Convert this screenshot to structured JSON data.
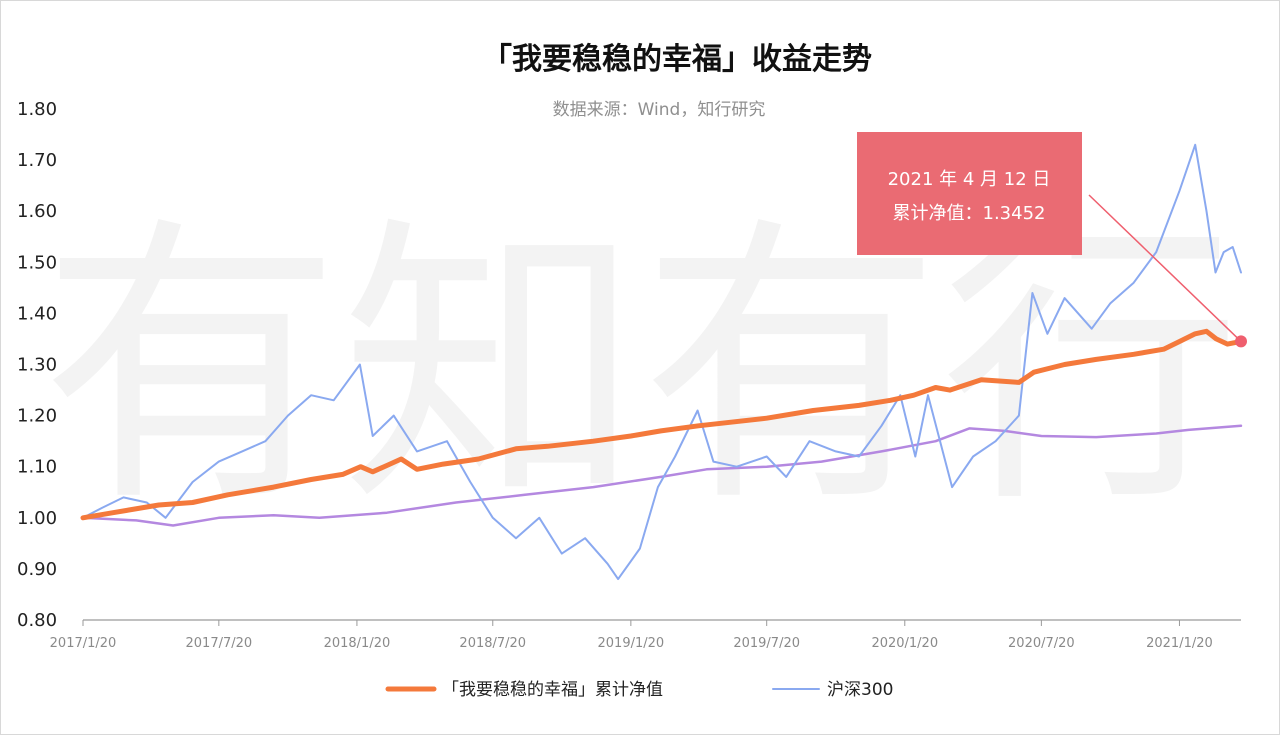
{
  "chart_data": {
    "type": "line",
    "title": "「我要稳稳的幸福」收益走势",
    "subtitle": "数据来源：Wind，知行研究",
    "watermark": "有知有行",
    "ylim": [
      0.8,
      1.8
    ],
    "yticks": [
      "0.80",
      "0.90",
      "1.00",
      "1.10",
      "1.20",
      "1.30",
      "1.40",
      "1.50",
      "1.60",
      "1.70",
      "1.80"
    ],
    "xlim": [
      "2017-01-20",
      "2021-04-12"
    ],
    "xticks": [
      {
        "date": "2017-01-20",
        "label": "2017/1/20"
      },
      {
        "date": "2017-07-20",
        "label": "2017/7/20"
      },
      {
        "date": "2018-01-20",
        "label": "2018/1/20"
      },
      {
        "date": "2018-07-20",
        "label": "2018/7/20"
      },
      {
        "date": "2019-01-20",
        "label": "2019/1/20"
      },
      {
        "date": "2019-07-20",
        "label": "2019/7/20"
      },
      {
        "date": "2020-01-20",
        "label": "2020/1/20"
      },
      {
        "date": "2020-07-20",
        "label": "2020/7/20"
      },
      {
        "date": "2021-01-20",
        "label": "2021/1/20"
      }
    ],
    "legend_position": "bottom",
    "grid": false,
    "series": [
      {
        "name": "「我要稳稳的幸福」累计净值",
        "color": "#f4793b",
        "points": [
          [
            "2017-01-20",
            1.0
          ],
          [
            "2017-03-01",
            1.01
          ],
          [
            "2017-05-01",
            1.025
          ],
          [
            "2017-06-15",
            1.03
          ],
          [
            "2017-08-01",
            1.045
          ],
          [
            "2017-10-01",
            1.06
          ],
          [
            "2017-11-20",
            1.075
          ],
          [
            "2018-01-01",
            1.085
          ],
          [
            "2018-01-25",
            1.1
          ],
          [
            "2018-02-10",
            1.09
          ],
          [
            "2018-03-05",
            1.105
          ],
          [
            "2018-03-20",
            1.115
          ],
          [
            "2018-04-10",
            1.095
          ],
          [
            "2018-05-15",
            1.105
          ],
          [
            "2018-07-01",
            1.115
          ],
          [
            "2018-08-20",
            1.135
          ],
          [
            "2018-10-01",
            1.14
          ],
          [
            "2018-12-01",
            1.15
          ],
          [
            "2019-01-20",
            1.16
          ],
          [
            "2019-03-01",
            1.17
          ],
          [
            "2019-04-20",
            1.18
          ],
          [
            "2019-05-20",
            1.185
          ],
          [
            "2019-07-20",
            1.195
          ],
          [
            "2019-09-20",
            1.21
          ],
          [
            "2019-11-20",
            1.22
          ],
          [
            "2020-01-01",
            1.23
          ],
          [
            "2020-02-01",
            1.24
          ],
          [
            "2020-03-01",
            1.255
          ],
          [
            "2020-03-20",
            1.25
          ],
          [
            "2020-05-01",
            1.27
          ],
          [
            "2020-06-20",
            1.265
          ],
          [
            "2020-07-10",
            1.285
          ],
          [
            "2020-08-20",
            1.3
          ],
          [
            "2020-10-01",
            1.31
          ],
          [
            "2020-11-20",
            1.32
          ],
          [
            "2020-12-30",
            1.33
          ],
          [
            "2021-01-20",
            1.345
          ],
          [
            "2021-02-10",
            1.36
          ],
          [
            "2021-02-25",
            1.365
          ],
          [
            "2021-03-10",
            1.35
          ],
          [
            "2021-03-25",
            1.34
          ],
          [
            "2021-04-12",
            1.3452
          ]
        ]
      },
      {
        "name": "沪深300",
        "color": "#8aa9f0",
        "points": [
          [
            "2017-01-20",
            1.0
          ],
          [
            "2017-02-15",
            1.02
          ],
          [
            "2017-03-15",
            1.04
          ],
          [
            "2017-04-15",
            1.03
          ],
          [
            "2017-05-10",
            1.0
          ],
          [
            "2017-06-15",
            1.07
          ],
          [
            "2017-07-20",
            1.11
          ],
          [
            "2017-08-20",
            1.13
          ],
          [
            "2017-09-20",
            1.15
          ],
          [
            "2017-10-20",
            1.2
          ],
          [
            "2017-11-20",
            1.24
          ],
          [
            "2017-12-20",
            1.23
          ],
          [
            "2018-01-24",
            1.3
          ],
          [
            "2018-02-10",
            1.16
          ],
          [
            "2018-03-10",
            1.2
          ],
          [
            "2018-04-10",
            1.13
          ],
          [
            "2018-05-20",
            1.15
          ],
          [
            "2018-06-20",
            1.07
          ],
          [
            "2018-07-20",
            1.0
          ],
          [
            "2018-08-20",
            0.96
          ],
          [
            "2018-09-20",
            1.0
          ],
          [
            "2018-10-20",
            0.93
          ],
          [
            "2018-11-20",
            0.96
          ],
          [
            "2018-12-20",
            0.91
          ],
          [
            "2019-01-03",
            0.88
          ],
          [
            "2019-02-01",
            0.94
          ],
          [
            "2019-02-25",
            1.06
          ],
          [
            "2019-03-20",
            1.12
          ],
          [
            "2019-04-19",
            1.21
          ],
          [
            "2019-05-10",
            1.11
          ],
          [
            "2019-06-10",
            1.1
          ],
          [
            "2019-07-20",
            1.12
          ],
          [
            "2019-08-15",
            1.08
          ],
          [
            "2019-09-15",
            1.15
          ],
          [
            "2019-10-20",
            1.13
          ],
          [
            "2019-11-20",
            1.12
          ],
          [
            "2019-12-20",
            1.18
          ],
          [
            "2020-01-14",
            1.24
          ],
          [
            "2020-02-03",
            1.12
          ],
          [
            "2020-02-20",
            1.24
          ],
          [
            "2020-03-23",
            1.06
          ],
          [
            "2020-04-20",
            1.12
          ],
          [
            "2020-05-20",
            1.15
          ],
          [
            "2020-06-20",
            1.2
          ],
          [
            "2020-07-08",
            1.44
          ],
          [
            "2020-07-28",
            1.36
          ],
          [
            "2020-08-20",
            1.43
          ],
          [
            "2020-09-25",
            1.37
          ],
          [
            "2020-10-20",
            1.42
          ],
          [
            "2020-11-20",
            1.46
          ],
          [
            "2020-12-20",
            1.52
          ],
          [
            "2021-01-20",
            1.64
          ],
          [
            "2021-02-10",
            1.73
          ],
          [
            "2021-02-25",
            1.6
          ],
          [
            "2021-03-09",
            1.48
          ],
          [
            "2021-03-20",
            1.52
          ],
          [
            "2021-04-01",
            1.53
          ],
          [
            "2021-04-12",
            1.48
          ]
        ]
      },
      {
        "name": "",
        "color": "#b488e0",
        "points": [
          [
            "2017-01-20",
            1.0
          ],
          [
            "2017-04-01",
            0.995
          ],
          [
            "2017-05-20",
            0.985
          ],
          [
            "2017-07-20",
            1.0
          ],
          [
            "2017-10-01",
            1.005
          ],
          [
            "2017-12-01",
            1.0
          ],
          [
            "2018-03-01",
            1.01
          ],
          [
            "2018-06-01",
            1.03
          ],
          [
            "2018-09-01",
            1.045
          ],
          [
            "2018-12-01",
            1.06
          ],
          [
            "2019-03-01",
            1.08
          ],
          [
            "2019-05-01",
            1.095
          ],
          [
            "2019-07-20",
            1.1
          ],
          [
            "2019-10-01",
            1.11
          ],
          [
            "2019-12-20",
            1.13
          ],
          [
            "2020-03-01",
            1.15
          ],
          [
            "2020-04-15",
            1.175
          ],
          [
            "2020-06-01",
            1.17
          ],
          [
            "2020-07-20",
            1.16
          ],
          [
            "2020-10-01",
            1.158
          ],
          [
            "2020-12-20",
            1.165
          ],
          [
            "2021-02-01",
            1.172
          ],
          [
            "2021-04-12",
            1.18
          ]
        ]
      }
    ],
    "annotation": {
      "date_label": "2021 年 4 月 12  日",
      "value_label": "累计净值：1.3452",
      "x": "2021-04-12",
      "y": 1.3452,
      "box_color": "#e9636b",
      "marker_color": "#ef5f6e"
    }
  }
}
